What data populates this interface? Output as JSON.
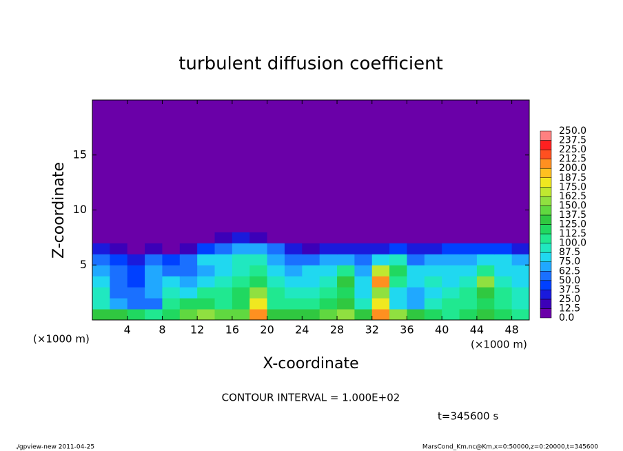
{
  "chart_data": {
    "type": "heatmap",
    "title": "turbulent diffusion coefficient",
    "x_label": "X-coordinate",
    "y_label": "Z-coordinate",
    "x_unit_label": "(×1000 m)",
    "annotation": "CONTOUR INTERVAL = 1.000E+02",
    "time_label": "t=345600 s",
    "footer_left": "./gpview-new  2011-04-25",
    "footer_right": "MarsCond_Km.nc@Km,x=0:50000,z=0:20000,t=345600",
    "xlim": [
      0,
      50
    ],
    "ylim": [
      0,
      20
    ],
    "xticks": [
      4,
      8,
      12,
      16,
      20,
      24,
      28,
      32,
      36,
      40,
      44,
      48
    ],
    "yticks": [
      5,
      10,
      15
    ],
    "xbins": [
      0,
      2,
      4,
      6,
      8,
      10,
      12,
      14,
      16,
      18,
      20,
      22,
      24,
      26,
      28,
      30,
      32,
      34,
      36,
      38,
      40,
      42,
      44,
      46,
      48,
      50
    ],
    "ybins": [
      0,
      1,
      2,
      3,
      4,
      5,
      6,
      7,
      8,
      20
    ],
    "values": [
      [
        125,
        130,
        115,
        105,
        120,
        140,
        150,
        145,
        140,
        205,
        130,
        125,
        135,
        140,
        160,
        130,
        200,
        150,
        130,
        115,
        110,
        120,
        135,
        120,
        105
      ],
      [
        90,
        70,
        55,
        60,
        100,
        120,
        115,
        110,
        120,
        180,
        110,
        100,
        105,
        115,
        130,
        95,
        180,
        80,
        70,
        90,
        100,
        105,
        120,
        110,
        95
      ],
      [
        95,
        60,
        50,
        70,
        90,
        80,
        100,
        105,
        115,
        150,
        100,
        90,
        95,
        110,
        120,
        85,
        160,
        75,
        65,
        85,
        95,
        100,
        125,
        105,
        90
      ],
      [
        80,
        55,
        45,
        70,
        75,
        65,
        80,
        95,
        105,
        120,
        90,
        80,
        85,
        95,
        130,
        75,
        200,
        110,
        80,
        90,
        85,
        90,
        150,
        95,
        85
      ],
      [
        70,
        50,
        40,
        65,
        60,
        55,
        70,
        85,
        95,
        100,
        80,
        70,
        75,
        80,
        110,
        70,
        170,
        120,
        75,
        85,
        80,
        80,
        100,
        85,
        75
      ],
      [
        60,
        40,
        30,
        50,
        45,
        50,
        75,
        80,
        90,
        90,
        70,
        60,
        55,
        65,
        70,
        55,
        80,
        90,
        60,
        70,
        65,
        70,
        80,
        75,
        65
      ],
      [
        30,
        15,
        10,
        20,
        10,
        20,
        40,
        55,
        70,
        70,
        50,
        30,
        20,
        25,
        30,
        25,
        30,
        40,
        25,
        30,
        40,
        45,
        45,
        40,
        35
      ],
      [
        0,
        0,
        0,
        0,
        0,
        0,
        5,
        15,
        25,
        20,
        5,
        0,
        0,
        0,
        0,
        0,
        0,
        0,
        0,
        0,
        5,
        5,
        5,
        0,
        0
      ],
      [
        0,
        0,
        0,
        0,
        0,
        0,
        0,
        0,
        0,
        0,
        0,
        0,
        0,
        0,
        0,
        0,
        0,
        0,
        0,
        0,
        0,
        0,
        0,
        0,
        0
      ]
    ],
    "levels": [
      {
        "value": 0,
        "label": "0.0"
      },
      {
        "value": 12.5,
        "label": "12.5"
      },
      {
        "value": 25,
        "label": "25.0"
      },
      {
        "value": 37.5,
        "label": "37.5"
      },
      {
        "value": 50,
        "label": "50.0"
      },
      {
        "value": 62.5,
        "label": "62.5"
      },
      {
        "value": 75,
        "label": "75.0"
      },
      {
        "value": 87.5,
        "label": "87.5"
      },
      {
        "value": 100,
        "label": "100.0"
      },
      {
        "value": 112.5,
        "label": "112.5"
      },
      {
        "value": 125,
        "label": "125.0"
      },
      {
        "value": 137.5,
        "label": "137.5"
      },
      {
        "value": 150,
        "label": "150.0"
      },
      {
        "value": 162.5,
        "label": "162.5"
      },
      {
        "value": 175,
        "label": "175.0"
      },
      {
        "value": 187.5,
        "label": "187.5"
      },
      {
        "value": 200,
        "label": "200.0"
      },
      {
        "value": 212.5,
        "label": "212.5"
      },
      {
        "value": 225,
        "label": "225.0"
      },
      {
        "value": 237.5,
        "label": "237.5"
      },
      {
        "value": 250,
        "label": "250.0"
      }
    ],
    "colors": [
      "#6a00a8",
      "#3c00b8",
      "#1a1adc",
      "#0040ff",
      "#1a70ff",
      "#20a8ff",
      "#20d8f0",
      "#20e8c0",
      "#20e890",
      "#20d860",
      "#30c840",
      "#60d840",
      "#90e040",
      "#c0e830",
      "#f0e820",
      "#ffc020",
      "#ff9020",
      "#ff5020",
      "#ff2020",
      "#ff8080"
    ]
  }
}
